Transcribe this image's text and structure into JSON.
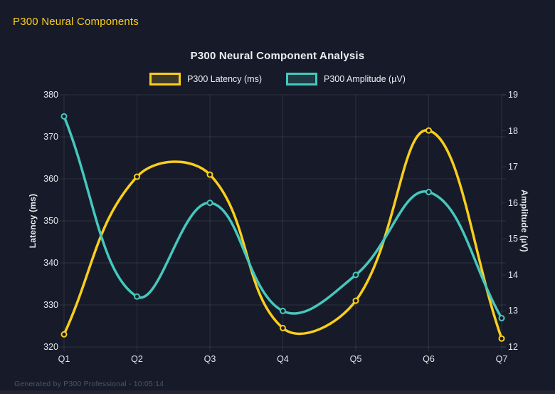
{
  "header": {
    "title": "P300 Neural Components"
  },
  "footer": {
    "text": "Generated by P300 Professional - 10:05:14"
  },
  "colors": {
    "background": "#171b29",
    "yellow": "#f9ce1c",
    "teal": "#45c8bd",
    "title_text": "#eceef2",
    "tick_text": "#e4e7ec",
    "gridline": "rgba(255,255,255,0.10)",
    "footer_text": "#4d5468"
  },
  "chart_data": {
    "type": "line",
    "title": "P300 Neural Component Analysis",
    "categories": [
      "Q1",
      "Q2",
      "Q3",
      "Q4",
      "Q5",
      "Q6",
      "Q7"
    ],
    "series": [
      {
        "name": "P300 Latency (ms)",
        "axis": "left",
        "color": "#f9ce1c",
        "values": [
          323,
          360.5,
          361,
          324.5,
          331,
          371.5,
          322
        ]
      },
      {
        "name": "P300 Amplitude (µV)",
        "axis": "right",
        "color": "#45c8bd",
        "values": [
          18.4,
          13.4,
          16.0,
          13.0,
          14.0,
          16.3,
          12.8
        ]
      }
    ],
    "left_axis": {
      "label": "Latency (ms)",
      "min": 320,
      "max": 380,
      "ticks": [
        320,
        330,
        340,
        350,
        360,
        370,
        380
      ]
    },
    "right_axis": {
      "label": "Amplitude (µV)",
      "min": 12,
      "max": 19,
      "ticks": [
        12,
        13,
        14,
        15,
        16,
        17,
        18,
        19
      ]
    },
    "grid": true,
    "legend_position": "top",
    "line_tension": 0.4
  }
}
